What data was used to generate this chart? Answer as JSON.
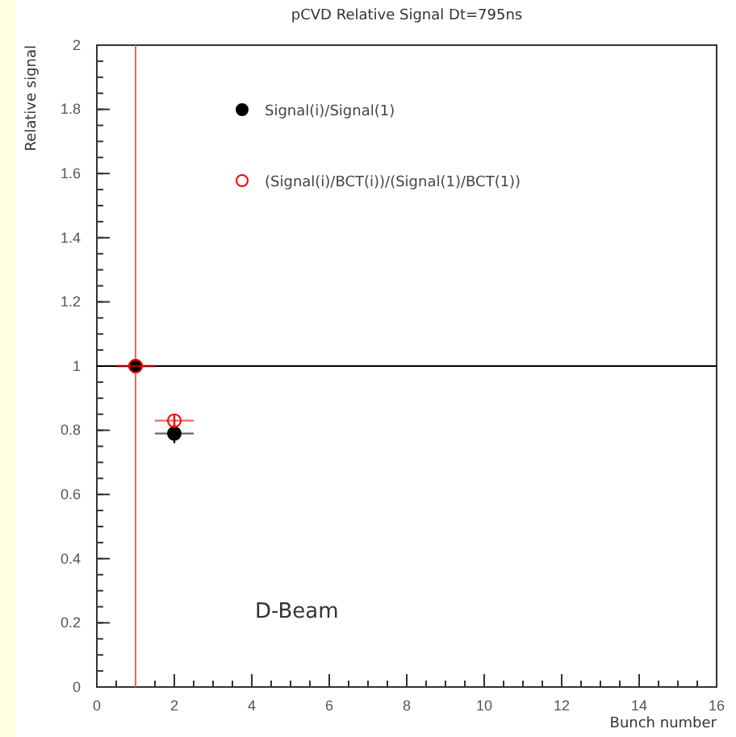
{
  "chart_data": {
    "type": "scatter",
    "title": "pCVD Relative Signal Dt=795ns",
    "xlabel": "Bunch number",
    "ylabel": "Relative signal",
    "x": [
      1,
      2
    ],
    "xlim": [
      0,
      16
    ],
    "xticks": [
      0,
      2,
      4,
      6,
      8,
      10,
      12,
      14,
      16
    ],
    "ylim": [
      0,
      2
    ],
    "yticks": [
      0,
      0.2,
      0.4,
      0.6,
      0.8,
      1,
      1.2,
      1.4,
      1.6,
      1.8,
      2
    ],
    "series": [
      {
        "name": "Signal(i)/Signal(1)",
        "color": "#000000",
        "marker": "circle",
        "values": [
          1,
          0.79
        ],
        "errors": [
          null,
          0.03
        ],
        "xerrors": [
          0.5,
          0.5
        ]
      },
      {
        "name": "(Signal(i)/BCT(i))/(Signal(1)/BCT(1))",
        "color": "#ff0000",
        "marker": "circle-open",
        "values": [
          1,
          0.83
        ],
        "errors": [
          null,
          0.02
        ],
        "xerrors": [
          0.5,
          0.5
        ]
      }
    ],
    "ref_lines": [
      {
        "axis": "x",
        "value": 1,
        "color": "#ff6060"
      },
      {
        "axis": "y",
        "value": 1,
        "color": "#000000"
      }
    ],
    "annotations": [
      "D-Beam"
    ],
    "legend": "top",
    "grid": false
  }
}
